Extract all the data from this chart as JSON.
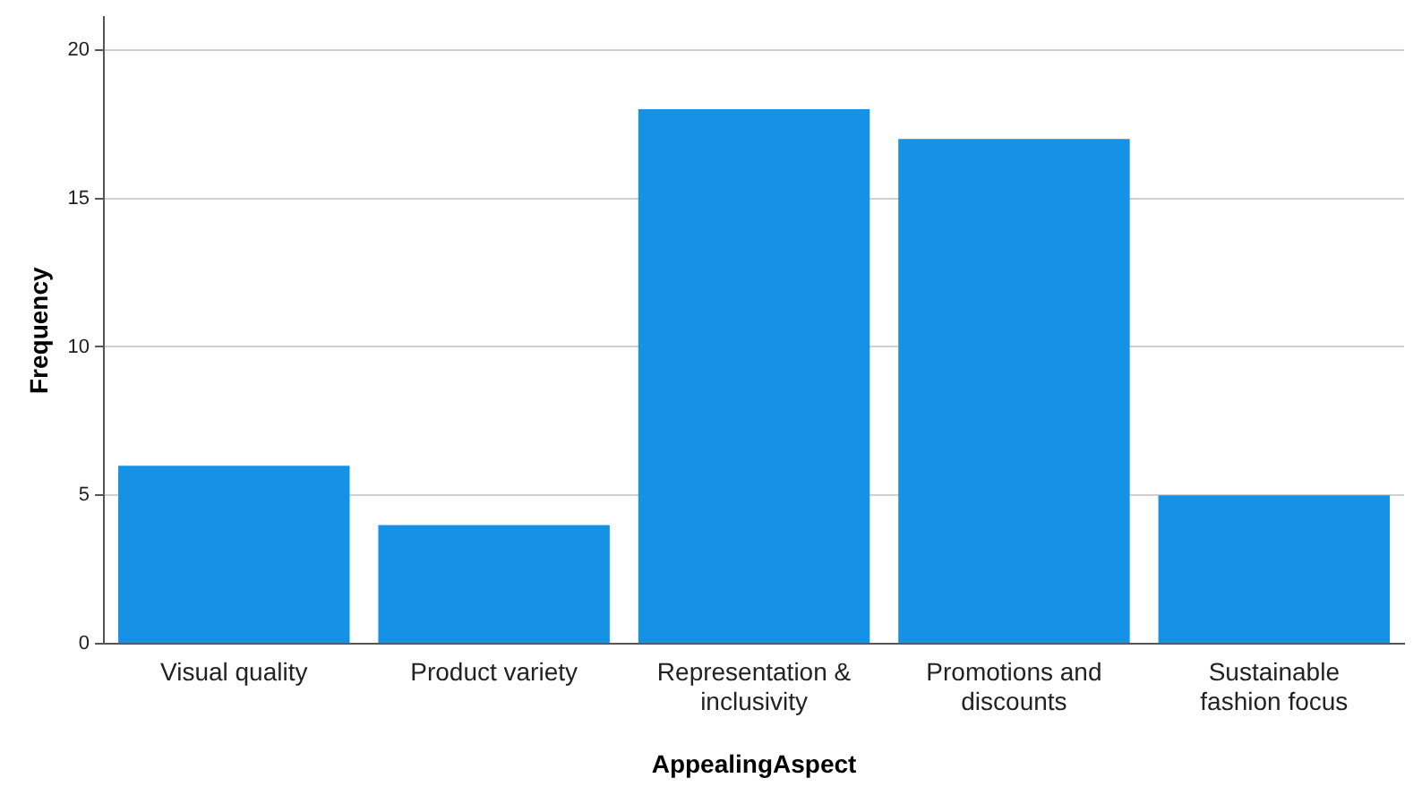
{
  "chart_data": {
    "type": "bar",
    "xlabel": "AppealingAspect",
    "ylabel": "Frequency",
    "categories": [
      "Visual quality",
      "Product variety",
      "Representation & inclusivity",
      "Promotions and discounts",
      "Sustainable fashion focus"
    ],
    "values": [
      6,
      4,
      18,
      17,
      5
    ],
    "color": "#1591e6",
    "ylim": [
      0,
      21.1
    ],
    "yticks": [
      0,
      5,
      10,
      15,
      20
    ],
    "grid": "y",
    "legend": false
  }
}
